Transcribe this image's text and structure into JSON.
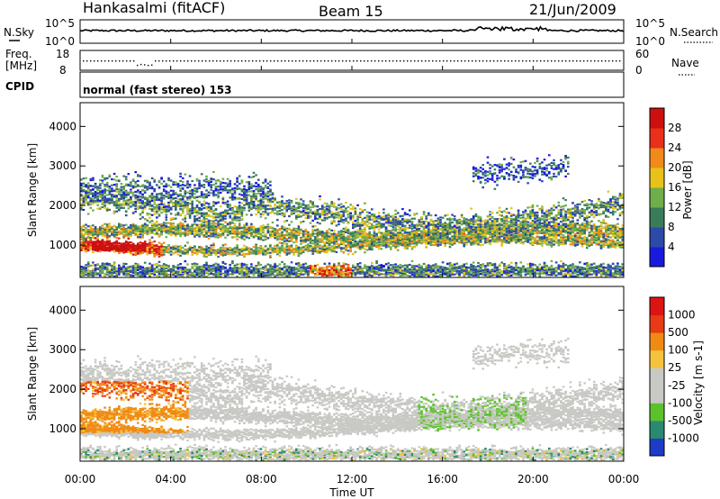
{
  "header": {
    "station": "Hankasalmi (fitACF)",
    "beam": "Beam 15",
    "date": "21/Jun/2009"
  },
  "top_panels": {
    "nsky_label": "N.Sky",
    "nsearch_label": "N.Search",
    "nsky_ticks": [
      "10^5",
      "10^0"
    ],
    "nsearch_ticks": [
      "10^5",
      "10^0"
    ],
    "freq_label_1": "Freq.",
    "freq_label_2": "[MHz]",
    "freq_ticks": [
      "18",
      "8"
    ],
    "nave_label": "Nave",
    "nave_ticks": [
      "60",
      "0"
    ],
    "cpid_label": "CPID",
    "cpid_text": "normal (fast stereo) 153"
  },
  "x_axis": {
    "label": "Time UT",
    "ticks": [
      "00:00",
      "04:00",
      "08:00",
      "12:00",
      "16:00",
      "20:00",
      "00:00"
    ]
  },
  "chart_data": [
    {
      "type": "heatmap",
      "name": "power",
      "ylabel": "Slant Range [km]",
      "ylim": [
        180,
        4600
      ],
      "yticks": [
        "1000",
        "2000",
        "3000",
        "4000"
      ],
      "colorbar_label": "Power [dB]",
      "colorbar_ticks": [
        "4",
        "8",
        "12",
        "16",
        "20",
        "24",
        "28"
      ],
      "colorbar_colors": [
        "#1a1adf",
        "#2c4aa8",
        "#3a7c5a",
        "#6fae4a",
        "#e6c21a",
        "#f08a1a",
        "#e8301a",
        "#cc1010"
      ]
    },
    {
      "type": "heatmap",
      "name": "velocity",
      "ylabel": "Slant Range [km]",
      "ylim": [
        180,
        4600
      ],
      "yticks": [
        "1000",
        "2000",
        "3000",
        "4000"
      ],
      "colorbar_label": "Velocity [m s-1]",
      "colorbar_ticks": [
        "1000",
        "500",
        "100",
        "25",
        "-25",
        "-100",
        "-500",
        "-1000"
      ],
      "colorbar_colors": [
        "#1c3cc8",
        "#2a8a70",
        "#5cc22c",
        "#c8c8c4",
        "#c8c8c4",
        "#f4c23c",
        "#f08a14",
        "#e83a14",
        "#dc1414"
      ]
    }
  ]
}
